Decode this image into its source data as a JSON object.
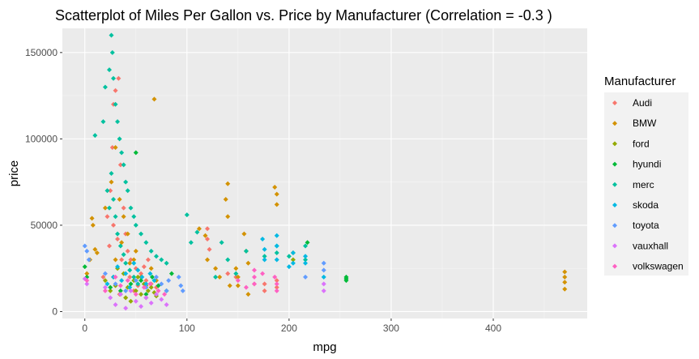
{
  "chart_data": {
    "type": "scatter",
    "title": "Scatterplot of Miles Per Gallon vs. Price by Manufacturer (Correlation = -0.3 )",
    "xlabel": "mpg",
    "ylabel": "price",
    "xlim": [
      -22,
      492
    ],
    "ylim": [
      -4000,
      164000
    ],
    "x_ticks": [
      0,
      100,
      200,
      300,
      400
    ],
    "y_ticks": [
      0,
      50000,
      100000,
      150000
    ],
    "x_tick_labels": [
      "0",
      "100",
      "200",
      "300",
      "400"
    ],
    "y_tick_labels": [
      "0",
      "50000",
      "100000",
      "150000"
    ],
    "grid": true,
    "legend": {
      "title": "Manufacturer",
      "position": "right"
    },
    "series": [
      {
        "name": "Audi",
        "color": "#F8766D",
        "points": [
          [
            18,
            20000
          ],
          [
            22,
            55000
          ],
          [
            25,
            70000
          ],
          [
            27,
            95000
          ],
          [
            28,
            120000
          ],
          [
            30,
            128000
          ],
          [
            33,
            135000
          ],
          [
            35,
            85000
          ],
          [
            38,
            60000
          ],
          [
            40,
            45000
          ],
          [
            42,
            35000
          ],
          [
            45,
            30000
          ],
          [
            50,
            25000
          ],
          [
            55,
            22000
          ],
          [
            60,
            18000
          ],
          [
            65,
            16000
          ],
          [
            70,
            14000
          ],
          [
            32,
            42000
          ],
          [
            36,
            30000
          ],
          [
            44,
            20000
          ],
          [
            48,
            12000
          ],
          [
            52,
            15000
          ],
          [
            58,
            26000
          ],
          [
            62,
            30000
          ],
          [
            28,
            50000
          ],
          [
            24,
            38000
          ],
          [
            34,
            10000
          ],
          [
            40,
            8000
          ],
          [
            120,
            42000
          ],
          [
            120,
            48000
          ],
          [
            122,
            36000
          ],
          [
            140,
            22000
          ],
          [
            148,
            20000
          ],
          [
            166,
            16000
          ],
          [
            176,
            12000
          ],
          [
            176,
            16000
          ],
          [
            188,
            14000
          ],
          [
            188,
            18000
          ]
        ]
      },
      {
        "name": "BMW",
        "color": "#D39200",
        "points": [
          [
            2,
            22000
          ],
          [
            5,
            30000
          ],
          [
            7,
            54000
          ],
          [
            8,
            50000
          ],
          [
            10,
            36000
          ],
          [
            12,
            34000
          ],
          [
            20,
            60000
          ],
          [
            26,
            75000
          ],
          [
            30,
            95000
          ],
          [
            34,
            65000
          ],
          [
            38,
            55000
          ],
          [
            42,
            45000
          ],
          [
            48,
            30000
          ],
          [
            55,
            20000
          ],
          [
            60,
            15000
          ],
          [
            68,
            123000
          ],
          [
            65,
            25000
          ],
          [
            70,
            18000
          ],
          [
            30,
            30000
          ],
          [
            36,
            40000
          ],
          [
            44,
            28000
          ],
          [
            50,
            35000
          ],
          [
            112,
            48000
          ],
          [
            118,
            44000
          ],
          [
            120,
            30000
          ],
          [
            128,
            25000
          ],
          [
            132,
            20000
          ],
          [
            138,
            65000
          ],
          [
            140,
            74000
          ],
          [
            140,
            55000
          ],
          [
            142,
            15000
          ],
          [
            148,
            25000
          ],
          [
            150,
            20000
          ],
          [
            150,
            15000
          ],
          [
            156,
            45000
          ],
          [
            158,
            35000
          ],
          [
            160,
            28000
          ],
          [
            160,
            10000
          ],
          [
            186,
            72000
          ],
          [
            188,
            68000
          ],
          [
            188,
            62000
          ],
          [
            470,
            23000
          ],
          [
            470,
            20000
          ],
          [
            470,
            17000
          ],
          [
            470,
            13000
          ]
        ]
      },
      {
        "name": "ford",
        "color": "#93AA00",
        "points": [
          [
            20,
            18000
          ],
          [
            25,
            12000
          ],
          [
            30,
            15000
          ],
          [
            35,
            10000
          ],
          [
            40,
            8000
          ],
          [
            45,
            6000
          ],
          [
            50,
            12000
          ],
          [
            55,
            10000
          ],
          [
            60,
            8000
          ],
          [
            65,
            14000
          ],
          [
            70,
            9000
          ],
          [
            28,
            20000
          ],
          [
            32,
            25000
          ],
          [
            38,
            22000
          ],
          [
            42,
            14000
          ],
          [
            48,
            18000
          ],
          [
            52,
            20000
          ],
          [
            58,
            16000
          ],
          [
            62,
            12000
          ],
          [
            68,
            11000
          ],
          [
            204,
            30000
          ],
          [
            204,
            34000
          ]
        ]
      },
      {
        "name": "hyundi",
        "color": "#00BA38",
        "points": [
          [
            0,
            26000
          ],
          [
            2,
            20000
          ],
          [
            25,
            14000
          ],
          [
            35,
            12000
          ],
          [
            45,
            16000
          ],
          [
            50,
            92000
          ],
          [
            55,
            18000
          ],
          [
            60,
            10000
          ],
          [
            66,
            20000
          ],
          [
            72,
            15000
          ],
          [
            80,
            12000
          ],
          [
            85,
            22000
          ],
          [
            256,
            20000
          ],
          [
            256,
            19000
          ],
          [
            256,
            18000
          ],
          [
            218,
            40000
          ]
        ]
      },
      {
        "name": "merc",
        "color": "#00C19F",
        "points": [
          [
            10,
            102000
          ],
          [
            18,
            110000
          ],
          [
            20,
            130000
          ],
          [
            24,
            140000
          ],
          [
            26,
            160000
          ],
          [
            27,
            150000
          ],
          [
            28,
            135000
          ],
          [
            30,
            120000
          ],
          [
            32,
            110000
          ],
          [
            34,
            100000
          ],
          [
            36,
            92000
          ],
          [
            38,
            85000
          ],
          [
            40,
            75000
          ],
          [
            42,
            70000
          ],
          [
            45,
            60000
          ],
          [
            48,
            55000
          ],
          [
            50,
            50000
          ],
          [
            55,
            45000
          ],
          [
            60,
            40000
          ],
          [
            65,
            35000
          ],
          [
            70,
            32000
          ],
          [
            75,
            30000
          ],
          [
            80,
            28000
          ],
          [
            26,
            80000
          ],
          [
            28,
            65000
          ],
          [
            30,
            55000
          ],
          [
            32,
            45000
          ],
          [
            35,
            38000
          ],
          [
            38,
            33000
          ],
          [
            40,
            28000
          ],
          [
            44,
            24000
          ],
          [
            48,
            20000
          ],
          [
            52,
            16000
          ],
          [
            22,
            70000
          ],
          [
            24,
            60000
          ],
          [
            100,
            56000
          ],
          [
            104,
            40000
          ],
          [
            110,
            46000
          ],
          [
            128,
            20000
          ],
          [
            134,
            40000
          ],
          [
            140,
            30000
          ],
          [
            148,
            22000
          ],
          [
            158,
            35000
          ],
          [
            176,
            32000
          ],
          [
            188,
            38000
          ],
          [
            188,
            34000
          ],
          [
            200,
            32000
          ],
          [
            216,
            38000
          ],
          [
            216,
            30000
          ]
        ]
      },
      {
        "name": "skoda",
        "color": "#00B9E3",
        "points": [
          [
            22,
            16000
          ],
          [
            28,
            20000
          ],
          [
            32,
            26000
          ],
          [
            36,
            18000
          ],
          [
            40,
            22000
          ],
          [
            44,
            14000
          ],
          [
            48,
            28000
          ],
          [
            52,
            24000
          ],
          [
            56,
            20000
          ],
          [
            60,
            16000
          ],
          [
            64,
            22000
          ],
          [
            68,
            18000
          ],
          [
            174,
            42000
          ],
          [
            176,
            36000
          ],
          [
            176,
            30000
          ],
          [
            188,
            44000
          ],
          [
            188,
            38000
          ],
          [
            188,
            30000
          ],
          [
            200,
            26000
          ],
          [
            204,
            28000
          ],
          [
            204,
            34000
          ],
          [
            216,
            32000
          ],
          [
            216,
            28000
          ],
          [
            234,
            20000
          ]
        ]
      },
      {
        "name": "toyota",
        "color": "#619CFF",
        "points": [
          [
            0,
            38000
          ],
          [
            2,
            35000
          ],
          [
            4,
            30000
          ],
          [
            20,
            22000
          ],
          [
            30,
            16000
          ],
          [
            40,
            12000
          ],
          [
            50,
            18000
          ],
          [
            60,
            14000
          ],
          [
            70,
            20000
          ],
          [
            75,
            16000
          ],
          [
            80,
            12000
          ],
          [
            82,
            18000
          ],
          [
            92,
            20000
          ],
          [
            94,
            15000
          ],
          [
            96,
            12000
          ],
          [
            216,
            20000
          ],
          [
            234,
            28000
          ],
          [
            234,
            24000
          ]
        ]
      },
      {
        "name": "vauxhall",
        "color": "#DB72FB",
        "points": [
          [
            0,
            19000
          ],
          [
            2,
            16000
          ],
          [
            20,
            14000
          ],
          [
            25,
            8000
          ],
          [
            30,
            4000
          ],
          [
            35,
            10000
          ],
          [
            40,
            2000
          ],
          [
            45,
            12000
          ],
          [
            50,
            6000
          ],
          [
            55,
            3000
          ],
          [
            60,
            8000
          ],
          [
            65,
            5000
          ],
          [
            70,
            10000
          ],
          [
            75,
            7000
          ],
          [
            80,
            4000
          ],
          [
            234,
            16000
          ],
          [
            234,
            12000
          ]
        ]
      },
      {
        "name": "volkswagen",
        "color": "#FF61C3",
        "points": [
          [
            2,
            18000
          ],
          [
            20,
            12000
          ],
          [
            30,
            20000
          ],
          [
            35,
            15000
          ],
          [
            42,
            18000
          ],
          [
            50,
            10000
          ],
          [
            58,
            14000
          ],
          [
            64,
            16000
          ],
          [
            72,
            12000
          ],
          [
            78,
            10000
          ],
          [
            150,
            18000
          ],
          [
            158,
            14000
          ],
          [
            166,
            24000
          ],
          [
            166,
            20000
          ],
          [
            166,
            16000
          ],
          [
            186,
            20000
          ],
          [
            188,
            16000
          ],
          [
            188,
            12000
          ],
          [
            174,
            22000
          ]
        ]
      }
    ]
  }
}
